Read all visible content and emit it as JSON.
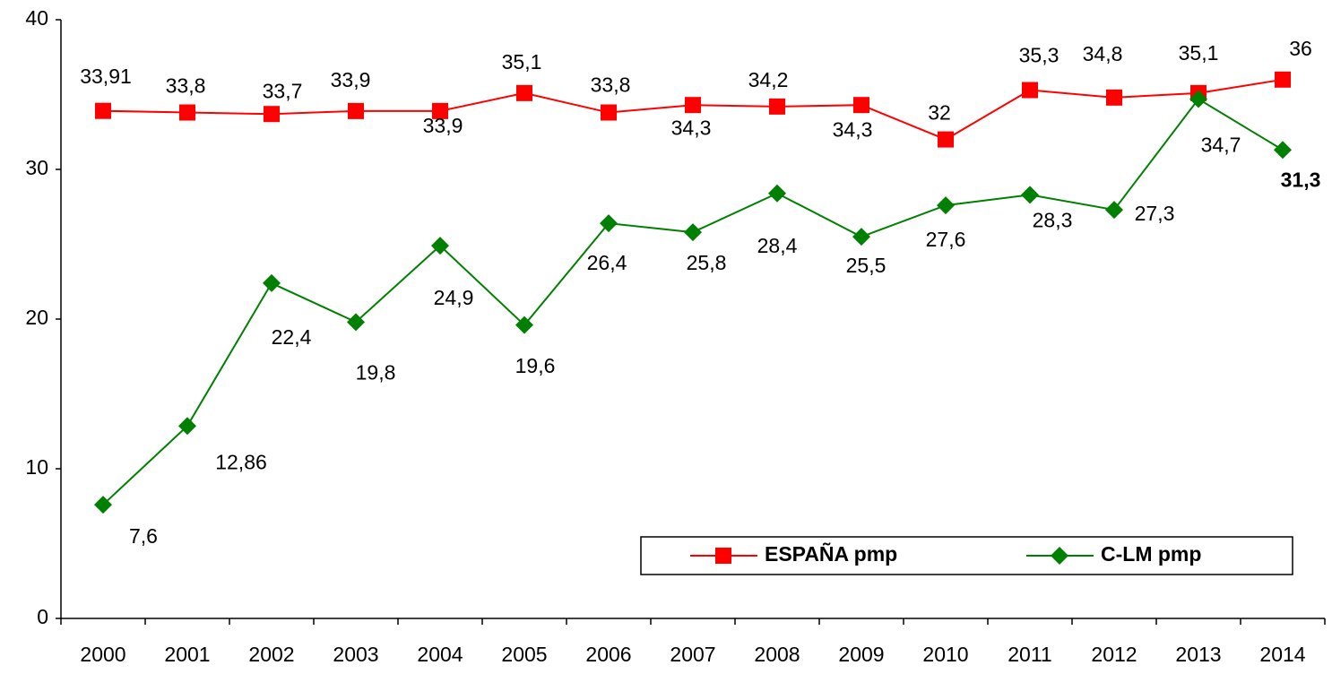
{
  "chart_data": {
    "type": "line",
    "categories": [
      "2000",
      "2001",
      "2002",
      "2003",
      "2004",
      "2005",
      "2006",
      "2007",
      "2008",
      "2009",
      "2010",
      "2011",
      "2012",
      "2013",
      "2014"
    ],
    "series": [
      {
        "name": "ESPAÑA pmp",
        "color": "#ff0000",
        "values": [
          33.91,
          33.8,
          33.7,
          33.9,
          33.9,
          35.1,
          33.8,
          34.3,
          34.2,
          34.3,
          32,
          35.3,
          34.8,
          35.1,
          36
        ],
        "value_labels": [
          "33,91",
          "33,8",
          "33,7",
          "33,9",
          "33,9",
          "35,1",
          "33,8",
          "34,3",
          "34,2",
          "34,3",
          "32",
          "35,3",
          "34,8",
          "35,1",
          "36"
        ]
      },
      {
        "name": "C-LM pmp",
        "color": "#008000",
        "values": [
          7.6,
          12.86,
          22.4,
          19.8,
          24.9,
          19.6,
          26.4,
          25.8,
          28.4,
          25.5,
          27.6,
          28.3,
          27.3,
          34.7,
          31.3
        ],
        "value_labels": [
          "7,6",
          "12,86",
          "22,4",
          "19,8",
          "24,9",
          "19,6",
          "26,4",
          "25,8",
          "28,4",
          "25,5",
          "27,6",
          "28,3",
          "27,3",
          "34,7",
          "31,3"
        ]
      }
    ],
    "ylim": [
      0,
      40
    ],
    "yticks": [
      0,
      10,
      20,
      30,
      40
    ],
    "grid": false,
    "legend": "bottom-right"
  }
}
